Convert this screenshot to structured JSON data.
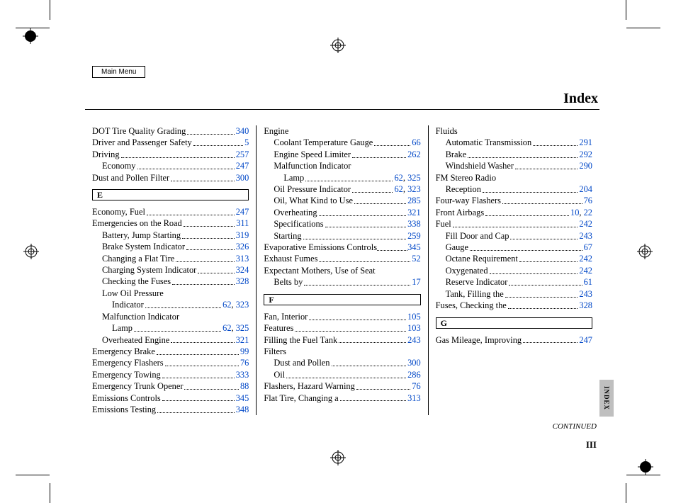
{
  "ui": {
    "main_menu": "Main Menu",
    "title": "Index",
    "side_tab": "INDEX",
    "continued": "CONTINUED",
    "page_num": "III"
  },
  "columns": [
    {
      "items": [
        {
          "type": "entry",
          "label": "DOT Tire Quality Grading",
          "pages": [
            "340"
          ]
        },
        {
          "type": "entry",
          "label": "Driver and Passenger Safety",
          "pages": [
            "5"
          ]
        },
        {
          "type": "entry",
          "label": "Driving",
          "pages": [
            "257"
          ]
        },
        {
          "type": "entry",
          "indent": 1,
          "label": "Economy",
          "pages": [
            "247"
          ]
        },
        {
          "type": "entry",
          "label": "Dust and Pollen Filter",
          "pages": [
            "300"
          ]
        },
        {
          "type": "letter",
          "label": "E"
        },
        {
          "type": "entry",
          "label": "Economy, Fuel",
          "pages": [
            "247"
          ]
        },
        {
          "type": "entry",
          "label": "Emergencies on the Road",
          "pages": [
            "311"
          ]
        },
        {
          "type": "entry",
          "indent": 1,
          "label": "Battery, Jump Starting",
          "pages": [
            "319"
          ]
        },
        {
          "type": "entry",
          "indent": 1,
          "label": "Brake System Indicator",
          "pages": [
            "326"
          ]
        },
        {
          "type": "entry",
          "indent": 1,
          "label": "Changing a Flat Tire",
          "pages": [
            "313"
          ]
        },
        {
          "type": "entry",
          "indent": 1,
          "label": "Charging System Indicator",
          "pages": [
            "324"
          ]
        },
        {
          "type": "entry",
          "indent": 1,
          "label": "Checking the Fuses",
          "pages": [
            "328"
          ]
        },
        {
          "type": "entry",
          "indent": 1,
          "label": "Low Oil Pressure",
          "nopage": true
        },
        {
          "type": "entry",
          "indent": 2,
          "label": "Indicator",
          "pages": [
            "62",
            "323"
          ]
        },
        {
          "type": "entry",
          "indent": 1,
          "label": "Malfunction Indicator",
          "nopage": true
        },
        {
          "type": "entry",
          "indent": 2,
          "label": "Lamp",
          "pages": [
            "62",
            "325"
          ]
        },
        {
          "type": "entry",
          "indent": 1,
          "label": "Overheated Engine",
          "pages": [
            "321"
          ]
        },
        {
          "type": "entry",
          "label": "Emergency Brake",
          "pages": [
            "99"
          ]
        },
        {
          "type": "entry",
          "label": "Emergency Flashers",
          "pages": [
            "76"
          ]
        },
        {
          "type": "entry",
          "label": "Emergency Towing",
          "pages": [
            "333"
          ]
        },
        {
          "type": "entry",
          "label": "Emergency Trunk Opener",
          "pages": [
            "88"
          ]
        },
        {
          "type": "entry",
          "label": "Emissions Controls",
          "pages": [
            "345"
          ]
        },
        {
          "type": "entry",
          "label": "Emissions Testing",
          "pages": [
            "348"
          ]
        }
      ]
    },
    {
      "items": [
        {
          "type": "entry",
          "label": "Engine",
          "nopage": true
        },
        {
          "type": "entry",
          "indent": 1,
          "label": "Coolant Temperature Gauge",
          "pages": [
            "66"
          ]
        },
        {
          "type": "entry",
          "indent": 1,
          "label": "Engine Speed Limiter",
          "pages": [
            "262"
          ]
        },
        {
          "type": "entry",
          "indent": 1,
          "label": "Malfunction Indicator",
          "nopage": true
        },
        {
          "type": "entry",
          "indent": 2,
          "label": "Lamp",
          "pages": [
            "62",
            "325"
          ]
        },
        {
          "type": "entry",
          "indent": 1,
          "label": "Oil Pressure Indicator",
          "pages": [
            "62",
            "323"
          ]
        },
        {
          "type": "entry",
          "indent": 1,
          "label": "Oil, What Kind to Use",
          "pages": [
            "285"
          ]
        },
        {
          "type": "entry",
          "indent": 1,
          "label": "Overheating",
          "pages": [
            "321"
          ]
        },
        {
          "type": "entry",
          "indent": 1,
          "label": "Specifications",
          "pages": [
            "338"
          ]
        },
        {
          "type": "entry",
          "indent": 1,
          "label": "Starting",
          "pages": [
            "259"
          ]
        },
        {
          "type": "entry",
          "label": "Evaporative Emissions Controls",
          "pages": [
            "345"
          ],
          "tight": true
        },
        {
          "type": "entry",
          "label": "Exhaust Fumes",
          "pages": [
            "52"
          ]
        },
        {
          "type": "entry",
          "label": "Expectant Mothers, Use of Seat",
          "nopage": true
        },
        {
          "type": "entry",
          "indent": 1,
          "label": "Belts by",
          "pages": [
            "17"
          ]
        },
        {
          "type": "letter",
          "label": "F"
        },
        {
          "type": "entry",
          "label": "Fan, Interior",
          "pages": [
            "105"
          ]
        },
        {
          "type": "entry",
          "label": "Features",
          "pages": [
            "103"
          ]
        },
        {
          "type": "entry",
          "label": "Filling the Fuel Tank",
          "pages": [
            "243"
          ]
        },
        {
          "type": "entry",
          "label": "Filters",
          "nopage": true
        },
        {
          "type": "entry",
          "indent": 1,
          "label": "Dust and Pollen",
          "pages": [
            "300"
          ]
        },
        {
          "type": "entry",
          "indent": 1,
          "label": "Oil",
          "pages": [
            "286"
          ]
        },
        {
          "type": "entry",
          "label": "Flashers, Hazard Warning",
          "pages": [
            "76"
          ]
        },
        {
          "type": "entry",
          "label": "Flat Tire, Changing a",
          "pages": [
            "313"
          ]
        }
      ]
    },
    {
      "items": [
        {
          "type": "entry",
          "label": "Fluids",
          "nopage": true
        },
        {
          "type": "entry",
          "indent": 1,
          "label": "Automatic Transmission",
          "pages": [
            "291"
          ]
        },
        {
          "type": "entry",
          "indent": 1,
          "label": "Brake",
          "pages": [
            "292"
          ]
        },
        {
          "type": "entry",
          "indent": 1,
          "label": "Windshield Washer",
          "pages": [
            "290"
          ]
        },
        {
          "type": "entry",
          "label": "FM Stereo Radio",
          "nopage": true
        },
        {
          "type": "entry",
          "indent": 1,
          "label": "Reception",
          "pages": [
            "204"
          ]
        },
        {
          "type": "entry",
          "label": "Four-way Flashers",
          "pages": [
            "76"
          ]
        },
        {
          "type": "entry",
          "label": "Front Airbags",
          "pages": [
            "10",
            "22"
          ]
        },
        {
          "type": "entry",
          "label": "Fuel",
          "pages": [
            "242"
          ]
        },
        {
          "type": "entry",
          "indent": 1,
          "label": "Fill Door and Cap",
          "pages": [
            "243"
          ]
        },
        {
          "type": "entry",
          "indent": 1,
          "label": "Gauge",
          "pages": [
            "67"
          ]
        },
        {
          "type": "entry",
          "indent": 1,
          "label": "Octane Requirement",
          "pages": [
            "242"
          ]
        },
        {
          "type": "entry",
          "indent": 1,
          "label": "Oxygenated",
          "pages": [
            "242"
          ]
        },
        {
          "type": "entry",
          "indent": 1,
          "label": "Reserve Indicator",
          "pages": [
            "61"
          ]
        },
        {
          "type": "entry",
          "indent": 1,
          "label": "Tank, Filling the",
          "pages": [
            "243"
          ]
        },
        {
          "type": "entry",
          "label": "Fuses, Checking the",
          "pages": [
            "328"
          ]
        },
        {
          "type": "letter",
          "label": "G"
        },
        {
          "type": "entry",
          "label": "Gas Mileage, Improving",
          "pages": [
            "247"
          ]
        }
      ]
    }
  ]
}
